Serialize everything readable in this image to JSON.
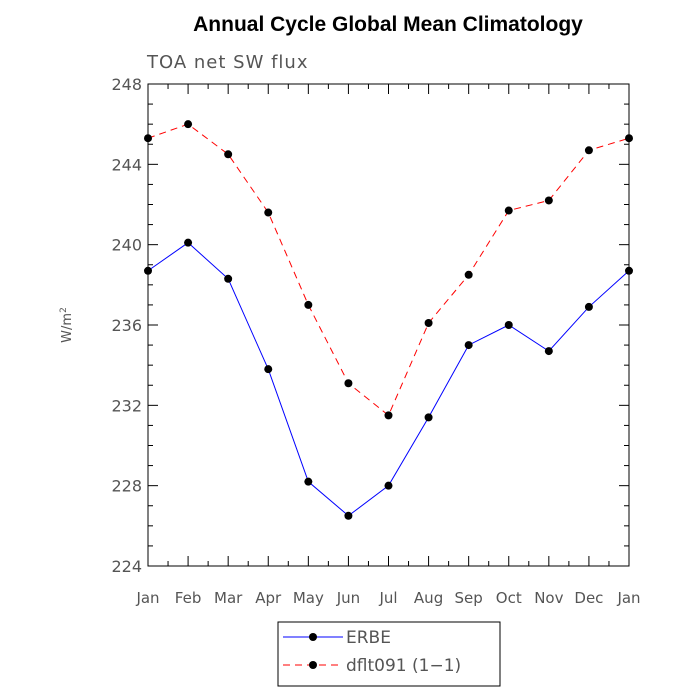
{
  "chart_data": {
    "type": "line",
    "title": "Annual Cycle Global Mean Climatology",
    "subtitle": "TOA net SW flux",
    "ylabel": "W/m",
    "ylabel_superscript": "2",
    "xlabel": "",
    "categories": [
      "Jan",
      "Feb",
      "Mar",
      "Apr",
      "May",
      "Jun",
      "Jul",
      "Aug",
      "Sep",
      "Oct",
      "Nov",
      "Dec",
      "Jan"
    ],
    "yticks": [
      "224",
      "228",
      "232",
      "236",
      "240",
      "244",
      "248"
    ],
    "ylim": [
      224,
      248
    ],
    "grid": false,
    "legend_position": "bottom-center",
    "series": [
      {
        "name": "ERBE",
        "color": "#0000ff",
        "line_style": "solid",
        "marker": "filled-circle",
        "values": [
          238.7,
          240.1,
          238.3,
          233.8,
          228.2,
          226.5,
          228.0,
          231.4,
          235.0,
          236.0,
          234.7,
          236.9,
          238.7
        ]
      },
      {
        "name": "dflt091 (1−1)",
        "color": "#ff0000",
        "line_style": "dashed",
        "marker": "filled-circle",
        "values": [
          245.3,
          246.0,
          244.5,
          241.6,
          237.0,
          233.1,
          231.5,
          236.1,
          238.5,
          241.7,
          242.2,
          244.7,
          245.3
        ]
      }
    ]
  }
}
